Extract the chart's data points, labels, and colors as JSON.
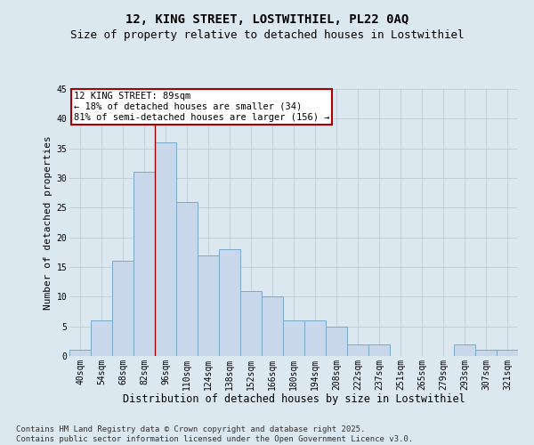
{
  "title1": "12, KING STREET, LOSTWITHIEL, PL22 0AQ",
  "title2": "Size of property relative to detached houses in Lostwithiel",
  "xlabel": "Distribution of detached houses by size in Lostwithiel",
  "ylabel": "Number of detached properties",
  "categories": [
    "40sqm",
    "54sqm",
    "68sqm",
    "82sqm",
    "96sqm",
    "110sqm",
    "124sqm",
    "138sqm",
    "152sqm",
    "166sqm",
    "180sqm",
    "194sqm",
    "208sqm",
    "222sqm",
    "237sqm",
    "251sqm",
    "265sqm",
    "279sqm",
    "293sqm",
    "307sqm",
    "321sqm"
  ],
  "values": [
    1,
    6,
    16,
    31,
    36,
    26,
    17,
    18,
    11,
    10,
    6,
    6,
    5,
    2,
    2,
    0,
    0,
    0,
    2,
    1,
    1
  ],
  "bar_color": "#c8d8ea",
  "bar_edge_color": "#7aaac8",
  "grid_color": "#c0ccd8",
  "bg_color": "#dce8f0",
  "annotation_text": "12 KING STREET: 89sqm\n← 18% of detached houses are smaller (34)\n81% of semi-detached houses are larger (156) →",
  "vline_x_index": 3.5,
  "annotation_box_color": "#ffffff",
  "annotation_border_color": "#aa0000",
  "ylim": [
    0,
    45
  ],
  "yticks": [
    0,
    5,
    10,
    15,
    20,
    25,
    30,
    35,
    40,
    45
  ],
  "footer1": "Contains HM Land Registry data © Crown copyright and database right 2025.",
  "footer2": "Contains public sector information licensed under the Open Government Licence v3.0.",
  "title1_fontsize": 10,
  "title2_fontsize": 9,
  "xlabel_fontsize": 8.5,
  "ylabel_fontsize": 8,
  "tick_fontsize": 7,
  "annotation_fontsize": 7.5,
  "footer_fontsize": 6.5
}
